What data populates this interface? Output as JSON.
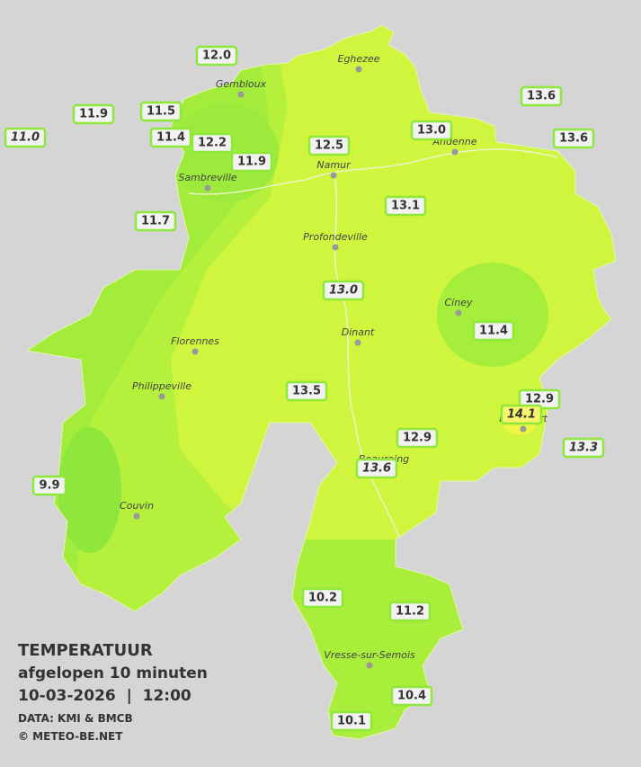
{
  "stations": [
    "12.0",
    "11.9",
    "11.5",
    "11.0",
    "11.4",
    "12.2",
    "11.9",
    "12.5",
    "13.0",
    "13.6",
    "13.6",
    "13.1",
    "11.7",
    "13.0",
    "11.4",
    "13.5",
    "12.9",
    "14.1",
    "12.9",
    "13.3",
    "13.6",
    "9.9",
    "10.2",
    "11.2",
    "10.4",
    "10.1"
  ],
  "places": [
    "Eghezee",
    "Gembloux",
    "Andenne",
    "Namur",
    "Sambreville",
    "Profondeville",
    "Ciney",
    "Dinant",
    "Florennes",
    "Philippeville",
    "Rochefort",
    "Beauraing",
    "Couvin",
    "Vresse-sur-Semois"
  ],
  "legend": {
    "title": "TEMPERATUUR",
    "subtitle": "afgelopen 10 minuten",
    "datetime": "10-03-2026  |  12:00",
    "source": "DATA: KMI & BMCB",
    "copyright": "© METEO-BE.NET"
  }
}
